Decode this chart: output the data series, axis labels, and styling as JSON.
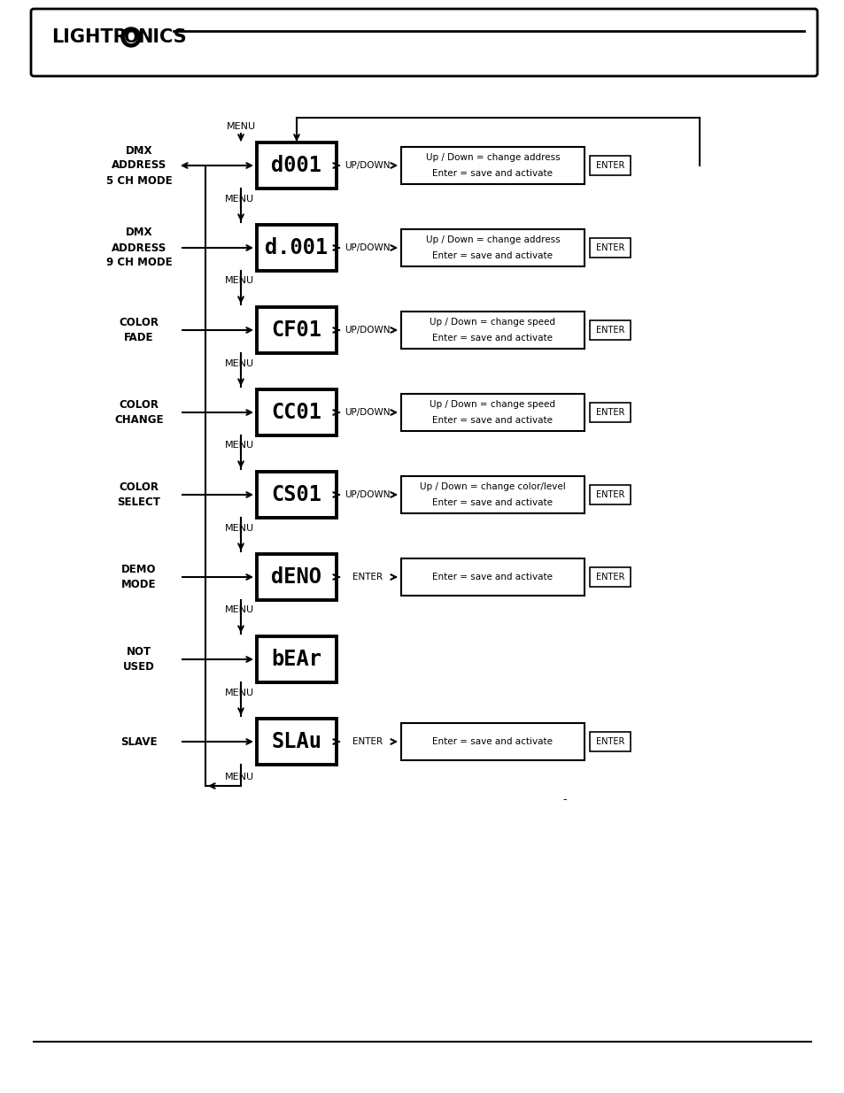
{
  "background_color": "#ffffff",
  "rows": [
    {
      "label": "DMX\nADDRESS\n5 CH MODE",
      "label_bold": true,
      "display_text": "d001",
      "button_text": "UP/DOWN",
      "has_action": true,
      "desc_line1": "Up / Down = change address",
      "desc_line2": "Enter = save and activate",
      "enter_label": "ENTER",
      "has_feedback": true
    },
    {
      "label": "DMX\nADDRESS\n9 CH MODE",
      "label_bold": true,
      "display_text": "d.001",
      "button_text": "UP/DOWN",
      "has_action": true,
      "desc_line1": "Up / Down = change address",
      "desc_line2": "Enter = save and activate",
      "enter_label": "ENTER",
      "has_feedback": false
    },
    {
      "label": "COLOR\nFADE",
      "label_bold": true,
      "display_text": "CF01",
      "button_text": "UP/DOWN",
      "has_action": true,
      "desc_line1": "Up / Down = change speed",
      "desc_line2": "Enter = save and activate",
      "enter_label": "ENTER",
      "has_feedback": false
    },
    {
      "label": "COLOR\nCHANGE",
      "label_bold": true,
      "display_text": "CC01",
      "button_text": "UP/DOWN",
      "has_action": true,
      "desc_line1": "Up / Down = change speed",
      "desc_line2": "Enter = save and activate",
      "enter_label": "ENTER",
      "has_feedback": false
    },
    {
      "label": "COLOR\nSELECT",
      "label_bold": true,
      "display_text": "CS01",
      "button_text": "UP/DOWN",
      "has_action": true,
      "desc_line1": "Up / Down = change color/level",
      "desc_line2": "Enter = save and activate",
      "enter_label": "ENTER",
      "has_feedback": false
    },
    {
      "label": "DEMO\nMODE",
      "label_bold": true,
      "display_text": "dENO",
      "button_text": "ENTER",
      "has_action": true,
      "desc_line1": "Enter = save and activate",
      "desc_line2": "",
      "enter_label": "ENTER",
      "has_feedback": false
    },
    {
      "label": "NOT\nUSED",
      "label_bold": true,
      "display_text": "bEAr",
      "button_text": "",
      "has_action": false,
      "desc_line1": "",
      "desc_line2": "",
      "enter_label": "",
      "has_feedback": false
    },
    {
      "label": "SLAVE",
      "label_bold": true,
      "display_text": "SLAu",
      "button_text": "ENTER",
      "has_action": true,
      "desc_line1": "Enter = save and activate",
      "desc_line2": "",
      "enter_label": "ENTER",
      "has_feedback": false
    }
  ],
  "menu_label": "MENU",
  "fig_width": 9.54,
  "fig_height": 12.35
}
